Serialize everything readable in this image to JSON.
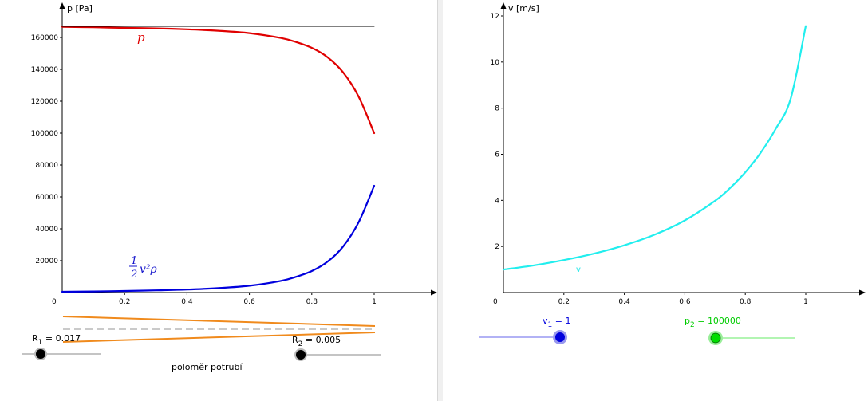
{
  "colors": {
    "pressure": "#e00000",
    "dynamic": "#0000dd",
    "velocity": "#22eeee",
    "ref_line": "#000000",
    "pipe": "#f08a1c",
    "slider_v1": "#0000dd",
    "slider_p2": "#00dd00",
    "divider": "#d7d7d7"
  },
  "labels": {
    "left_y_axis": "p [Pa]",
    "right_y_axis": "v [m/s]",
    "origin_left": "0",
    "origin_right": "0",
    "p_curve": "p",
    "dyn_fraction_num": "1",
    "dyn_fraction_den": "2",
    "dyn_rest": "v²ρ",
    "v_curve": "v",
    "pipe_caption": "poloměr potrubí"
  },
  "sliders": {
    "r1": {
      "name": "R",
      "sub": "1",
      "value": "0.017"
    },
    "r2": {
      "name": "R",
      "sub": "2",
      "value": "0.005"
    },
    "v1": {
      "name": "v",
      "sub": "1",
      "value": "1"
    },
    "p2": {
      "name": "p",
      "sub": "2",
      "value": "100000"
    }
  },
  "chart_data": [
    {
      "type": "line",
      "title": "",
      "xlabel": "",
      "ylabel": "p [Pa]",
      "xlim": [
        0,
        1.18
      ],
      "ylim": [
        0,
        168000
      ],
      "x_ticks": [
        0.2,
        0.4,
        0.6,
        0.8,
        1
      ],
      "x_tick_labels": [
        "0.2",
        "0.4",
        "0.6",
        "0.8",
        "1"
      ],
      "y_ticks": [
        20000,
        40000,
        60000,
        80000,
        100000,
        120000,
        140000,
        160000
      ],
      "y_tick_labels": [
        "20000",
        "40000",
        "60000",
        "80000",
        "100000",
        "120000",
        "140000",
        "160000"
      ],
      "grid": false,
      "x": [
        0,
        0.1,
        0.2,
        0.3,
        0.4,
        0.5,
        0.6,
        0.7,
        0.75,
        0.8,
        0.85,
        0.9,
        0.95,
        1.0
      ],
      "series": [
        {
          "name": "p",
          "color": "#e00000",
          "values": [
            166700,
            166400,
            166000,
            165700,
            165100,
            164200,
            162700,
            159700,
            157100,
            153500,
            147700,
            138200,
            123000,
            100000
          ]
        },
        {
          "name": "½v²ρ",
          "color": "#0000dd",
          "values": [
            500,
            700,
            1000,
            1400,
            1900,
            2800,
            4300,
            7300,
            9900,
            13500,
            19300,
            28800,
            44000,
            67000
          ]
        },
        {
          "name": "",
          "color": "#000000",
          "values": [
            167000,
            167000,
            167000,
            167000,
            167000,
            167000,
            167000,
            167000,
            167000,
            167000,
            167000,
            167000,
            167000,
            167000
          ]
        }
      ]
    },
    {
      "type": "line",
      "title": "",
      "xlabel": "",
      "ylabel": "v [m/s]",
      "xlim": [
        0,
        1.19
      ],
      "ylim": [
        0,
        12.2
      ],
      "x_ticks": [
        0.2,
        0.4,
        0.6,
        0.8,
        1
      ],
      "x_tick_labels": [
        "0.2",
        "0.4",
        "0.6",
        "0.8",
        "1"
      ],
      "y_ticks": [
        2,
        4,
        6,
        8,
        10,
        12
      ],
      "y_tick_labels": [
        "2",
        "4",
        "6",
        "8",
        "10",
        "12"
      ],
      "grid": false,
      "x": [
        0,
        0.1,
        0.2,
        0.3,
        0.4,
        0.5,
        0.6,
        0.7,
        0.75,
        0.8,
        0.85,
        0.9,
        0.95,
        1.0
      ],
      "series": [
        {
          "name": "v",
          "color": "#22eeee",
          "values": [
            1.0,
            1.18,
            1.41,
            1.69,
            2.05,
            2.51,
            3.13,
            3.98,
            4.54,
            5.22,
            6.05,
            7.09,
            8.4,
            11.56
          ]
        }
      ]
    }
  ]
}
